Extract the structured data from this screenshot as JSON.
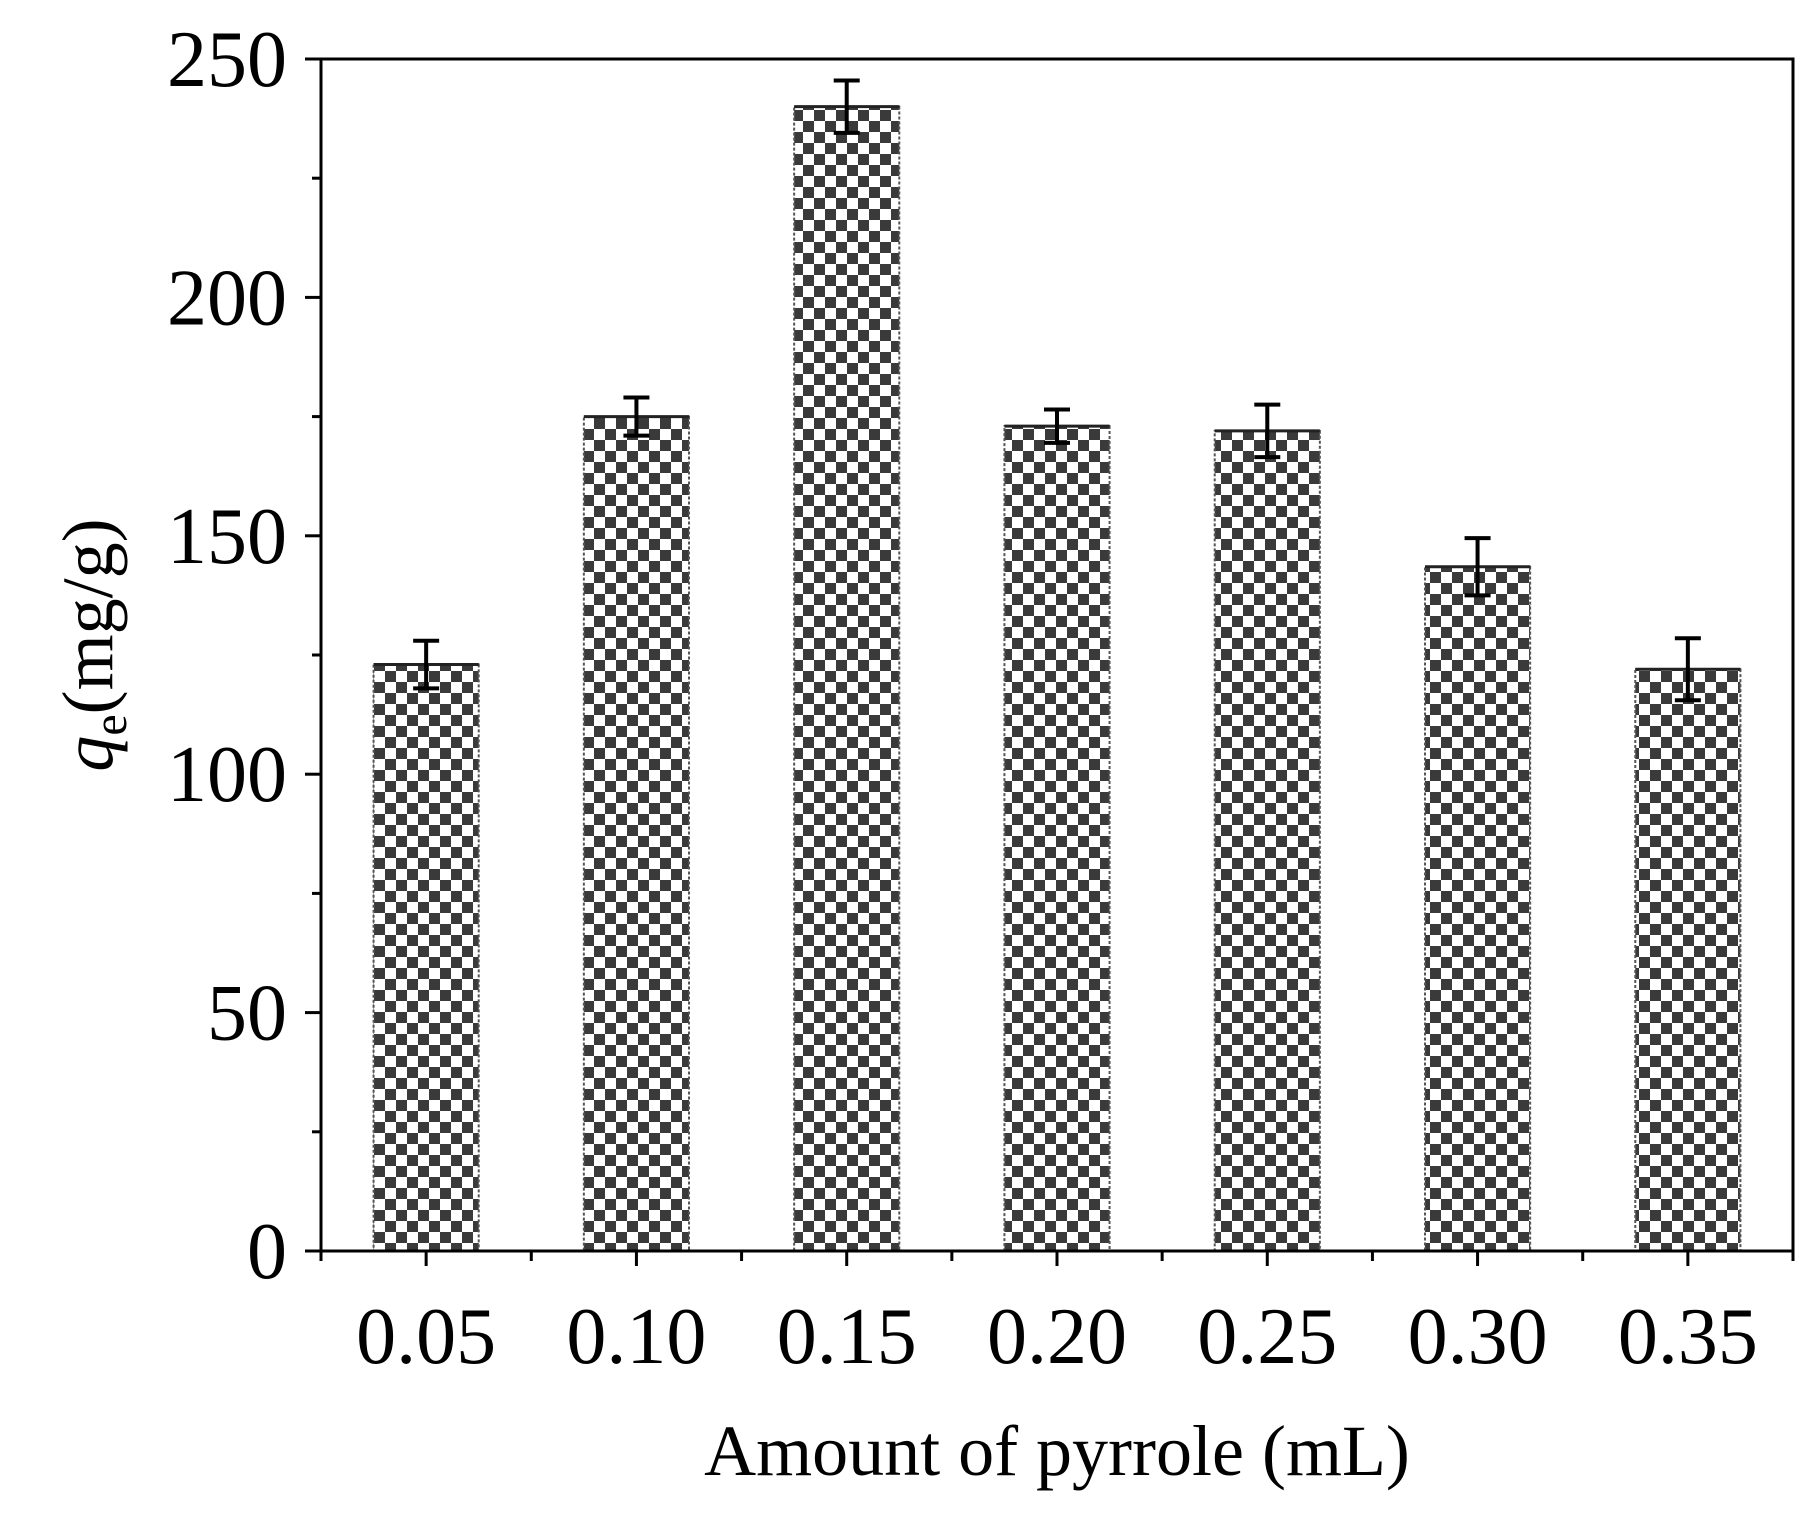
{
  "chart_data": {
    "type": "bar",
    "categories": [
      "0.05",
      "0.10",
      "0.15",
      "0.20",
      "0.25",
      "0.30",
      "0.35"
    ],
    "values": [
      123,
      175,
      240,
      173,
      172,
      143.5,
      122
    ],
    "errors": [
      5,
      4,
      5.5,
      3.5,
      5.5,
      6,
      6.5
    ],
    "xlabel": "Amount of pyrrole (mL)",
    "ylabel": {
      "symbol": "q",
      "subscript": "e",
      "unit": "(mg/g)"
    },
    "ylim": [
      0,
      250
    ],
    "yticks": [
      0,
      50,
      100,
      150,
      200,
      250
    ],
    "yticklabels": [
      "0",
      "50",
      "100",
      "150",
      "200",
      "250"
    ],
    "grid": false,
    "bar_pattern": "checkerboard",
    "bar_colors": {
      "dark": "#3a3a3a",
      "light": "#ffffff"
    },
    "axis_color": "#000000"
  }
}
